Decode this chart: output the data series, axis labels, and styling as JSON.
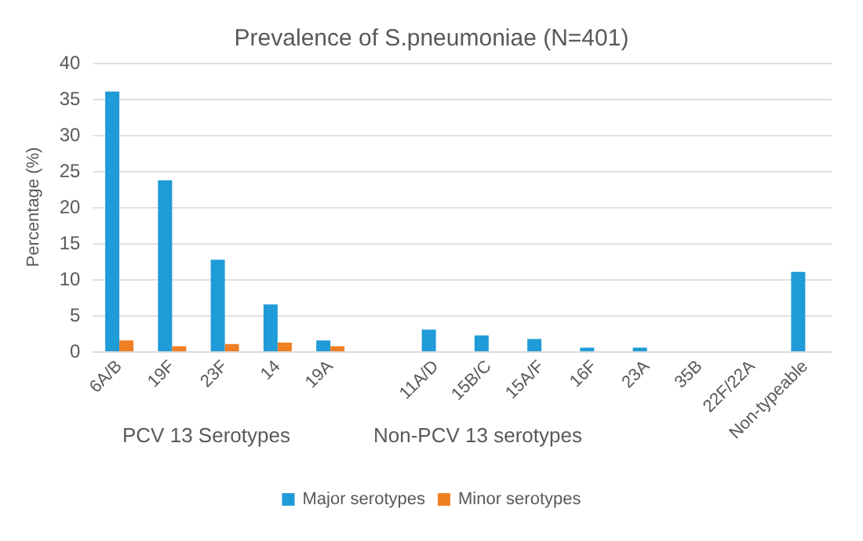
{
  "chart_data": {
    "type": "bar",
    "title": "Prevalence of S.pneumoniae (N=401)",
    "ylabel": "Percentage (%)",
    "categories": [
      "6A/B",
      "19F",
      "23F",
      "14",
      "19A",
      null,
      "11A/D",
      "15B/C",
      "15A/F",
      "16F",
      "23A",
      "35B",
      "22F/22A",
      "Non-typeable"
    ],
    "series": [
      {
        "name": "Major serotypes",
        "color": "#1f9bd7",
        "values": [
          36,
          23.7,
          12.7,
          6.5,
          1.5,
          null,
          3,
          2.2,
          1.7,
          0.5,
          0.5,
          0,
          0,
          11
        ]
      },
      {
        "name": "Minor serotypes",
        "color": "#f07f24",
        "values": [
          1.5,
          0.7,
          1,
          1.2,
          0.7,
          null,
          0,
          0,
          0,
          0,
          0,
          0,
          0,
          0
        ]
      }
    ],
    "ylim": [
      0,
      40
    ],
    "yticks": [
      0,
      5,
      10,
      15,
      20,
      25,
      30,
      35,
      40
    ],
    "grid": "y",
    "legend": "bottom",
    "annotations": [
      "PCV 13 Serotypes",
      "Non-PCV 13 serotypes"
    ]
  }
}
